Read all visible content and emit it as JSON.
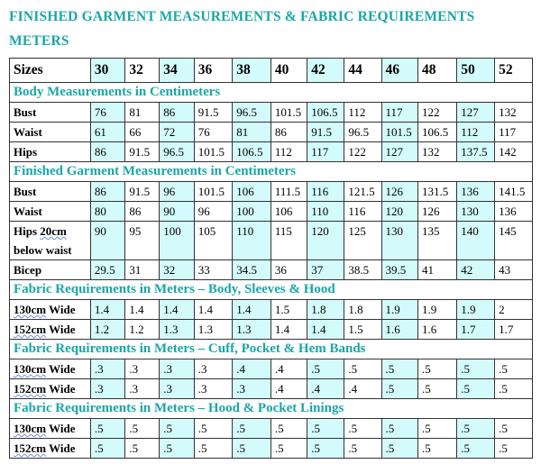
{
  "title_line1": "FINISHED GARMENT MEASUREMENTS & FABRIC REQUIREMENTS",
  "title_line2": "METERS",
  "colors": {
    "accent": "#1aa6a6",
    "highlight": "#d3fbfb"
  },
  "highlighted_sizes": [
    "30",
    "34",
    "38",
    "42",
    "46",
    "50"
  ],
  "header_label": "Sizes",
  "sizes": [
    "30",
    "32",
    "34",
    "36",
    "38",
    "40",
    "42",
    "44",
    "46",
    "48",
    "50",
    "52"
  ],
  "sections": [
    {
      "title": "Body Measurements in Centimeters",
      "rows": [
        {
          "label": "Bust",
          "values": [
            "76",
            "81",
            "86",
            "91.5",
            "96.5",
            "101.5",
            "106.5",
            "112",
            "117",
            "122",
            "127",
            "132"
          ]
        },
        {
          "label": "Waist",
          "values": [
            "61",
            "66",
            "72",
            "76",
            "81",
            "86",
            "91.5",
            "96.5",
            "101.5",
            "106.5",
            "112",
            "117"
          ]
        },
        {
          "label": "Hips",
          "values": [
            "86",
            "91.5",
            "96.5",
            "101.5",
            "106.5",
            "112",
            "117",
            "122",
            "127",
            "132",
            "137.5",
            "142"
          ]
        }
      ]
    },
    {
      "title": "Finished Garment Measurements in Centimeters",
      "rows": [
        {
          "label": "Bust",
          "values": [
            "86",
            "91.5",
            "96",
            "101.5",
            "106",
            "111.5",
            "116",
            "121.5",
            "126",
            "131.5",
            "136",
            "141.5"
          ]
        },
        {
          "label": "Waist",
          "values": [
            "80",
            "86",
            "90",
            "96",
            "100",
            "106",
            "110",
            "116",
            "120",
            "126",
            "130",
            "136"
          ]
        },
        {
          "label": "Hips 20cm below waist",
          "values": [
            "90",
            "95",
            "100",
            "105",
            "110",
            "115",
            "120",
            "125",
            "130",
            "135",
            "140",
            "145"
          ]
        },
        {
          "label": "Bicep",
          "values": [
            "29.5",
            "31",
            "32",
            "33",
            "34.5",
            "36",
            "37",
            "38.5",
            "39.5",
            "41",
            "42",
            "43"
          ]
        }
      ]
    },
    {
      "title": "Fabric Requirements in Meters – Body, Sleeves & Hood",
      "rows": [
        {
          "label": "130cm Wide",
          "values": [
            "1.4",
            "1.4",
            "1.4",
            "1.4",
            "1.4",
            "1.5",
            "1.8",
            "1.8",
            "1.9",
            "1.9",
            "1.9",
            "2"
          ]
        },
        {
          "label": "152cm Wide",
          "values": [
            "1.2",
            "1.2",
            "1.3",
            "1.3",
            "1.3",
            "1.4",
            "1.4",
            "1.5",
            "1.6",
            "1.6",
            "1.7",
            "1.7"
          ]
        }
      ]
    },
    {
      "title": "Fabric Requirements in Meters – Cuff, Pocket & Hem Bands",
      "rows": [
        {
          "label": "130cm Wide",
          "values": [
            ".3",
            ".3",
            ".3",
            ".3",
            ".4",
            ".4",
            ".5",
            ".5",
            ".5",
            ".5",
            ".5",
            ".5"
          ]
        },
        {
          "label": "152cm Wide",
          "values": [
            ".3",
            ".3",
            ".3",
            ".3",
            ".3",
            ".4",
            ".4",
            ".4",
            ".5",
            ".5",
            ".5",
            ".5"
          ]
        }
      ]
    },
    {
      "title": "Fabric Requirements in Meters – Hood & Pocket Linings",
      "rows": [
        {
          "label": "130cm Wide",
          "values": [
            ".5",
            ".5",
            ".5",
            ".5",
            ".5",
            ".5",
            ".5",
            ".5",
            ".5",
            ".5",
            ".5",
            ".5"
          ]
        },
        {
          "label": "152cm Wide",
          "values": [
            ".5",
            ".5",
            ".5",
            ".5",
            ".5",
            ".5",
            ".5",
            ".5",
            ".5",
            ".5",
            ".5",
            ".5"
          ]
        }
      ]
    }
  ]
}
